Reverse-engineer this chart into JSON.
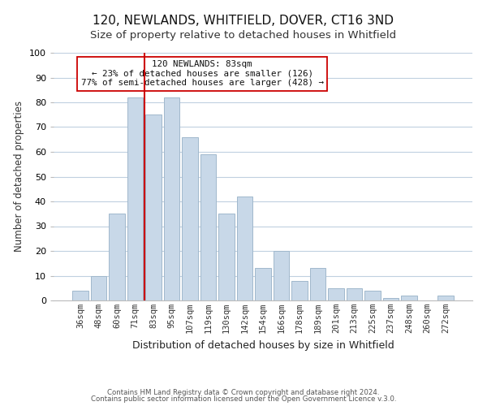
{
  "title": "120, NEWLANDS, WHITFIELD, DOVER, CT16 3ND",
  "subtitle": "Size of property relative to detached houses in Whitfield",
  "xlabel": "Distribution of detached houses by size in Whitfield",
  "ylabel": "Number of detached properties",
  "footer_line1": "Contains HM Land Registry data © Crown copyright and database right 2024.",
  "footer_line2": "Contains public sector information licensed under the Open Government Licence v.3.0.",
  "bar_labels": [
    "36sqm",
    "48sqm",
    "60sqm",
    "71sqm",
    "83sqm",
    "95sqm",
    "107sqm",
    "119sqm",
    "130sqm",
    "142sqm",
    "154sqm",
    "166sqm",
    "178sqm",
    "189sqm",
    "201sqm",
    "213sqm",
    "225sqm",
    "237sqm",
    "248sqm",
    "260sqm",
    "272sqm"
  ],
  "bar_values": [
    4,
    10,
    35,
    82,
    75,
    82,
    66,
    59,
    35,
    42,
    13,
    20,
    8,
    13,
    5,
    5,
    4,
    1,
    2,
    0,
    2
  ],
  "bar_color": "#c8d8e8",
  "bar_edge_color": "#a0b8cc",
  "vline_x_index": 4,
  "vline_color": "#cc0000",
  "annotation_line1": "120 NEWLANDS: 83sqm",
  "annotation_line2": "← 23% of detached houses are smaller (126)",
  "annotation_line3": "77% of semi-detached houses are larger (428) →",
  "annotation_box_color": "#ffffff",
  "annotation_box_edge_color": "#cc0000",
  "ylim": [
    0,
    100
  ],
  "yticks": [
    0,
    10,
    20,
    30,
    40,
    50,
    60,
    70,
    80,
    90,
    100
  ],
  "grid_color": "#c0d0e0",
  "bg_color": "#ffffff",
  "title_fontsize": 11,
  "subtitle_fontsize": 9.5,
  "ylabel_fontsize": 8.5,
  "xlabel_fontsize": 9,
  "tick_fontsize": 7.5,
  "ytick_fontsize": 8
}
